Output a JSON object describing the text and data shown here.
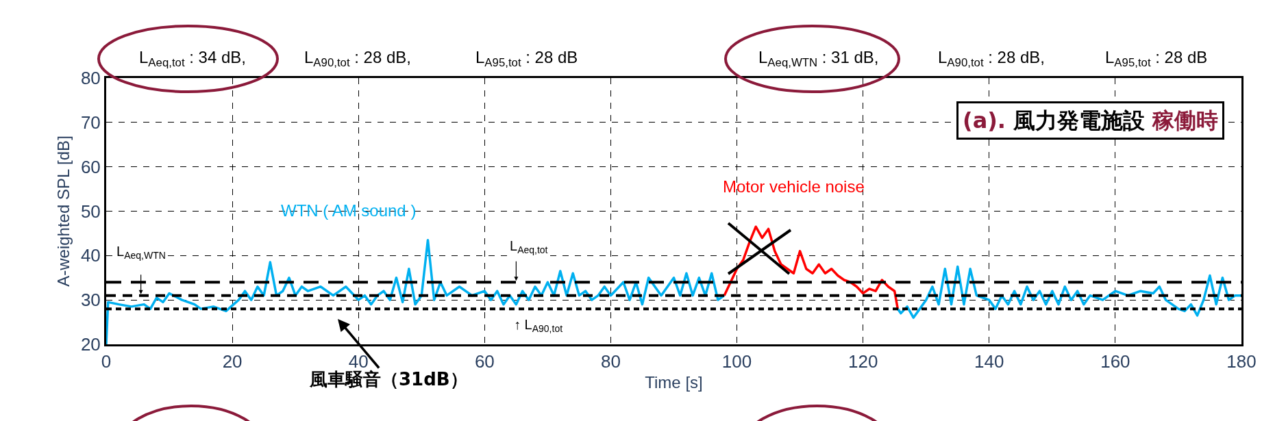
{
  "chart_data": {
    "type": "line",
    "xlabel": "Time [s]",
    "ylabel": "A-weighted SPL [dB]",
    "xlim": [
      0,
      180
    ],
    "xticks": [
      0,
      20,
      40,
      60,
      80,
      100,
      120,
      140,
      160,
      180
    ],
    "ylim": [
      20,
      80
    ],
    "yticks": [
      20,
      30,
      40,
      50,
      60,
      70,
      80
    ],
    "grid": true,
    "marker": "none",
    "line_style": "solid",
    "series": [
      {
        "name": "WTN ( AM sound )",
        "color": "#00b0f0",
        "x": [
          0,
          0.3,
          2,
          4,
          6,
          7,
          8,
          9,
          10,
          12,
          14,
          15,
          17,
          19,
          21,
          22,
          23,
          24,
          25,
          26,
          27,
          28,
          29,
          30,
          31,
          32,
          34,
          36,
          38,
          40,
          41,
          42,
          43,
          44,
          45,
          46,
          47,
          48,
          49,
          50,
          51,
          52,
          53,
          54,
          56,
          58,
          60,
          61,
          62,
          63,
          64,
          65,
          66,
          67,
          68,
          69,
          70,
          71,
          72,
          73,
          74,
          75,
          76,
          77,
          78,
          79,
          80,
          82,
          83,
          84,
          85,
          86,
          88,
          90,
          91,
          92,
          93,
          94,
          95,
          96,
          97,
          98,
          110,
          125.5,
          126,
          127,
          128,
          129,
          130,
          131,
          132,
          133,
          134,
          135,
          136,
          137,
          138,
          140,
          141,
          142,
          143,
          144,
          145,
          146,
          147,
          148,
          149,
          150,
          151,
          152,
          153,
          154,
          155,
          156,
          158,
          160,
          162,
          164,
          166,
          167,
          168,
          169,
          170,
          171,
          172,
          173,
          174,
          175,
          176,
          177,
          178,
          179,
          180
        ],
        "values": [
          20,
          29.5,
          29,
          28.5,
          29,
          28,
          30.5,
          29.5,
          31.5,
          30,
          29,
          28,
          28.5,
          27.5,
          30,
          32,
          30,
          33,
          31,
          38.5,
          31,
          32,
          35,
          31,
          33,
          32,
          33,
          31,
          33,
          30,
          31,
          29,
          31,
          32,
          30,
          35,
          29.5,
          37,
          29,
          31,
          43.5,
          30,
          34,
          31,
          33,
          31,
          32,
          30,
          32,
          29,
          31,
          29,
          32,
          30,
          33,
          31,
          34,
          31,
          36.5,
          31,
          36,
          31,
          32,
          30,
          31,
          33,
          31,
          34,
          30,
          34,
          29,
          35,
          31,
          35,
          31,
          36,
          31,
          35,
          31,
          36,
          30,
          31,
          null,
          28,
          27,
          28.5,
          26,
          28,
          30,
          33,
          29,
          37,
          29,
          37.5,
          29,
          37,
          31,
          30,
          28,
          31,
          29,
          32,
          29,
          33,
          30,
          32,
          29,
          32,
          29,
          33,
          30,
          32,
          29,
          31,
          30,
          32,
          31,
          32,
          31.5,
          33,
          30,
          29,
          28,
          27.5,
          29,
          26.5,
          30,
          35.5,
          29,
          35,
          30,
          31,
          31
        ]
      },
      {
        "name": "Motor vehicle noise",
        "color": "#ff0000",
        "x": [
          98,
          99,
          100,
          101,
          102,
          103,
          104,
          105,
          106,
          107,
          108,
          109,
          110,
          111,
          112,
          113,
          114,
          115,
          116,
          117,
          118,
          119,
          120,
          121,
          122,
          123,
          124,
          125,
          125.5
        ],
        "values": [
          31,
          34,
          37,
          39,
          43,
          46.5,
          44,
          46,
          41,
          38,
          37,
          36,
          41,
          37,
          36,
          38,
          36,
          37,
          35.5,
          34.5,
          34,
          33,
          31.5,
          32.5,
          32,
          34.5,
          33,
          32,
          28
        ]
      }
    ],
    "ref_lines": [
      {
        "axis": "y",
        "value": 34,
        "label": "L$_{Aeq,tot}$",
        "color": "#000000",
        "line_style": "dashed"
      },
      {
        "axis": "y",
        "value": 31,
        "label": "L$_{Aeq,WTN}$",
        "color": "#000000",
        "line_style": "dashed"
      },
      {
        "axis": "y",
        "value": 28,
        "label": "↑ L$_{A90,tot}$",
        "color": "#000000",
        "line_style": "dotted"
      }
    ],
    "annotations": [
      "L$_{Aeq,tot}$ : 34 dB,",
      "L$_{A90,tot}$ : 28 dB,",
      "L$_{A95,tot}$ : 28 dB",
      "L$_{Aeq,WTN}$ : 31 dB,",
      "L$_{A90,tot}$ : 28 dB,",
      "L$_{A95,tot}$ : 28 dB",
      "(a).",
      "風力発電施設",
      "稼働時",
      "風車騒音（31dB）"
    ]
  }
}
